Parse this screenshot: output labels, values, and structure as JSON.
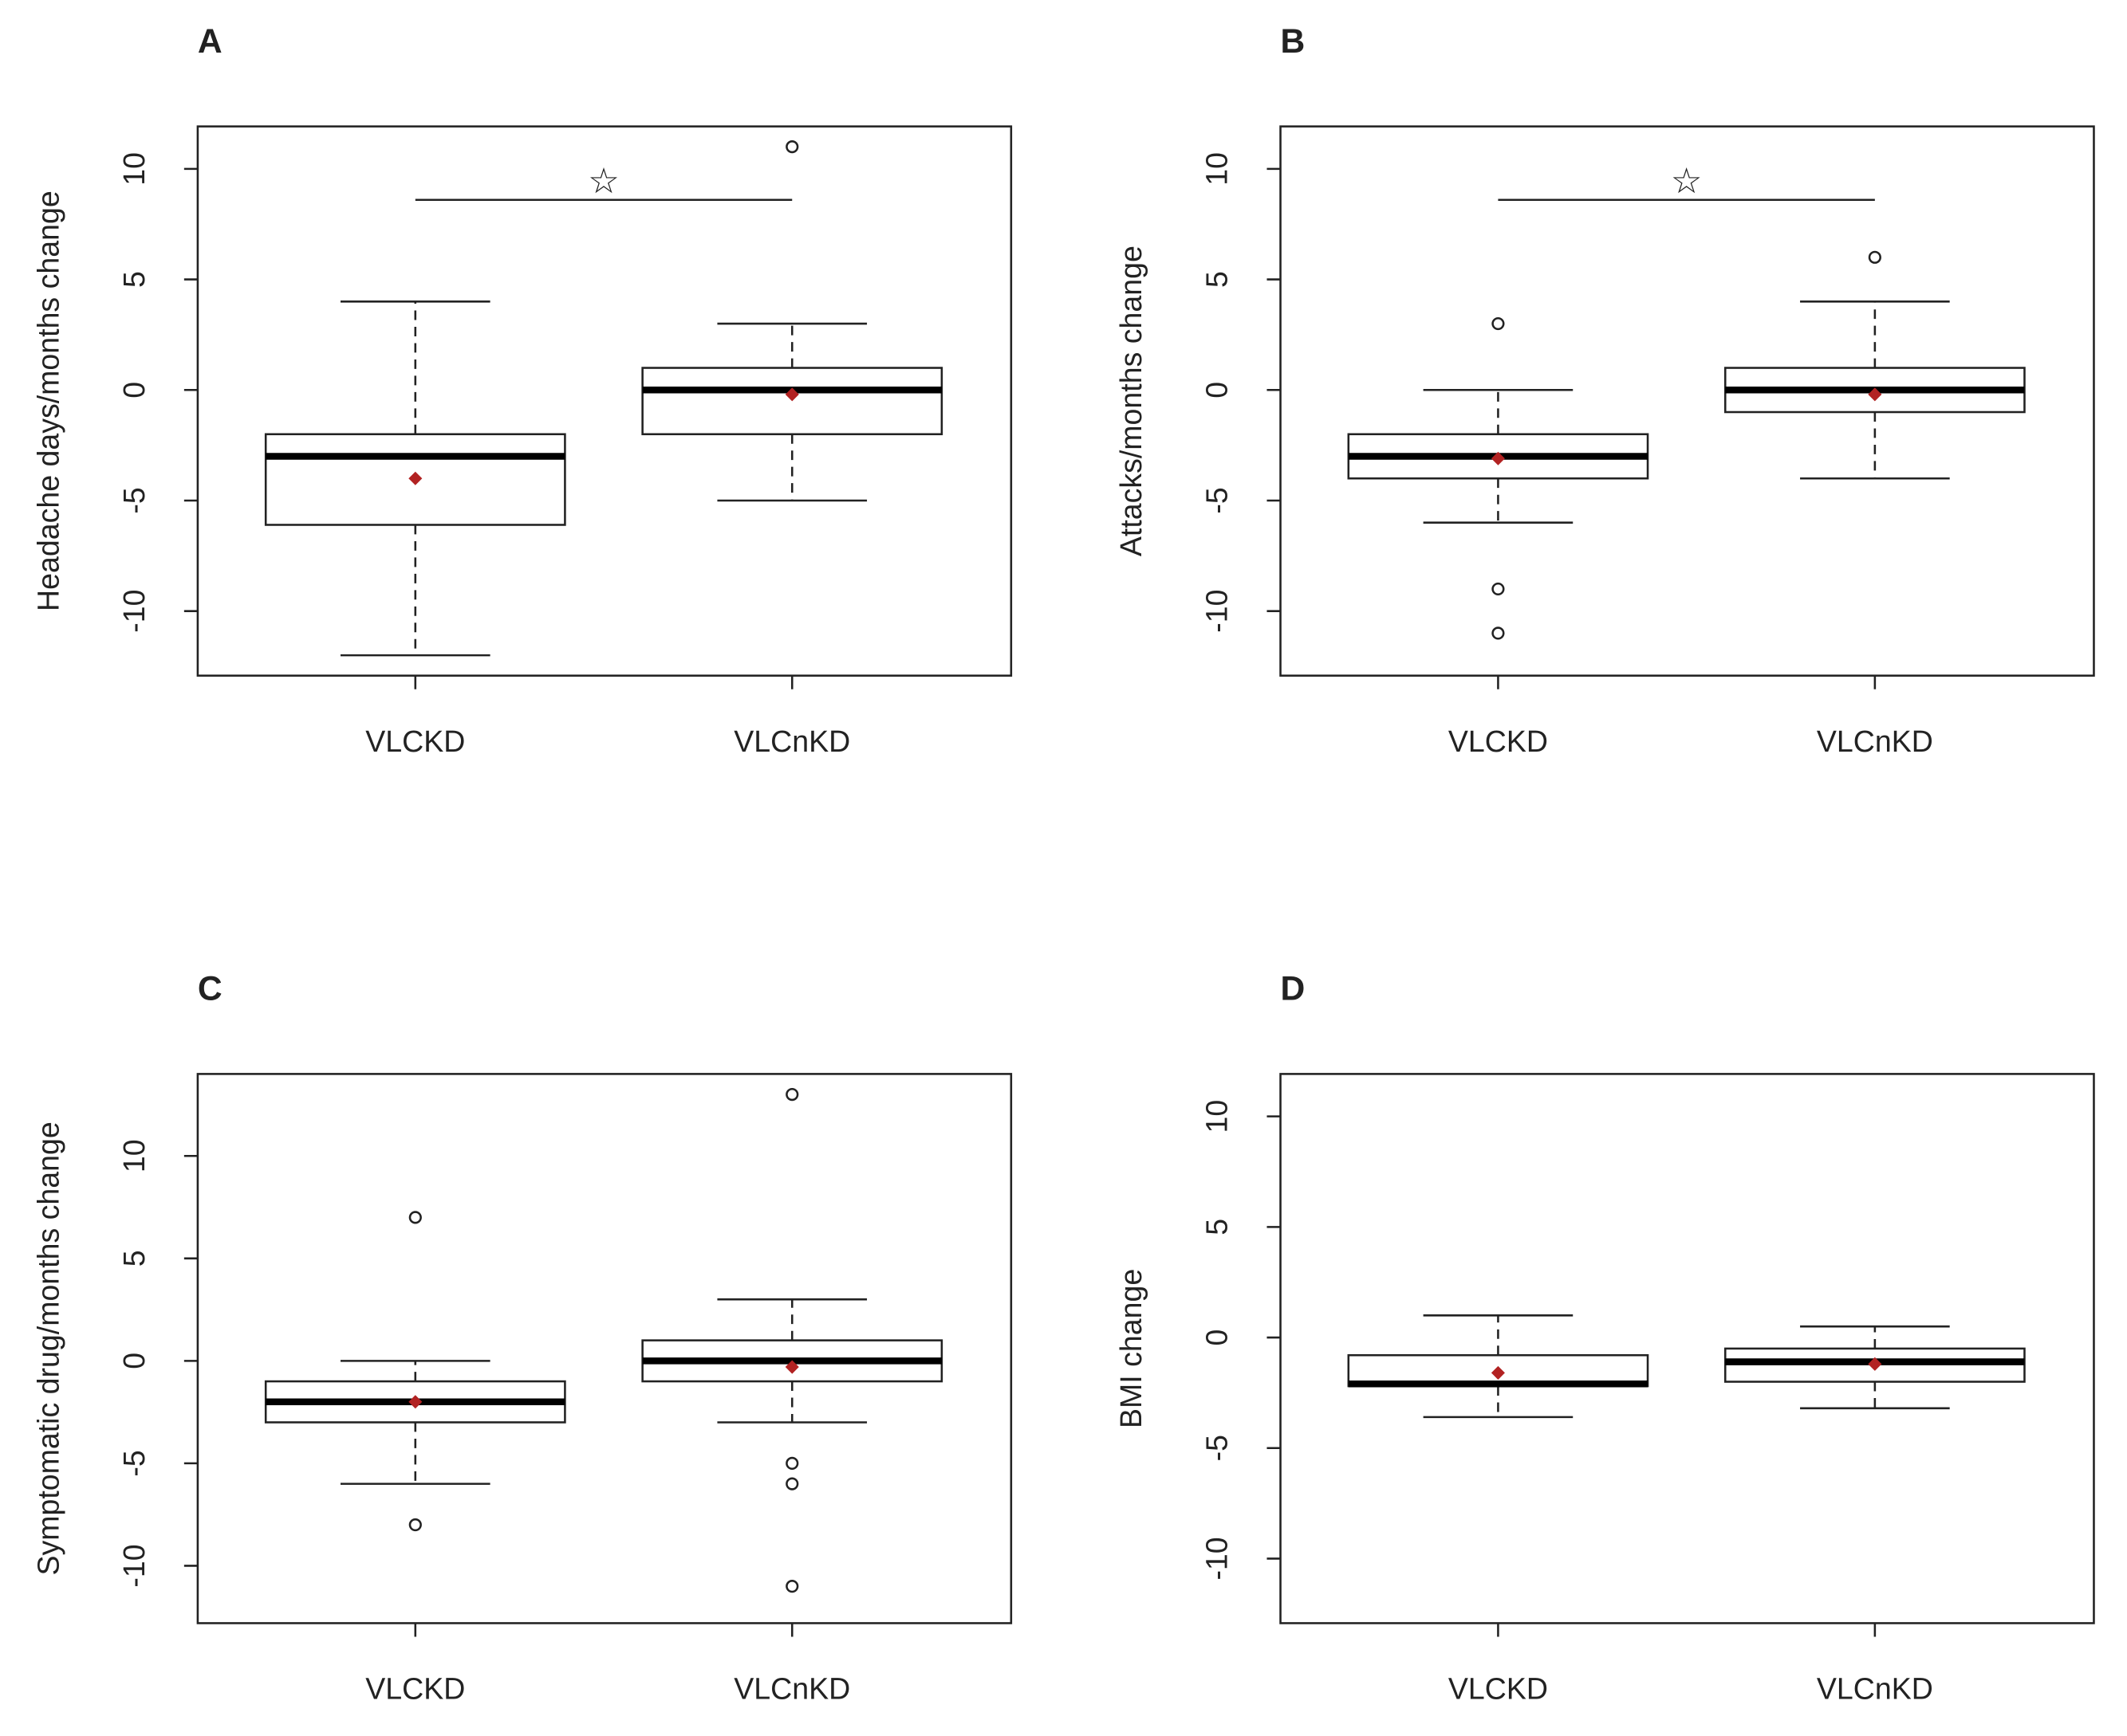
{
  "chart_data": [
    {
      "type": "box",
      "title": "A",
      "ylabel": "Headache days/months change",
      "categories": [
        "VLCKD",
        "VLCnKD"
      ],
      "boxes": [
        {
          "min": -12,
          "q1": -6.1,
          "median": -3,
          "q3": -2,
          "max": 4,
          "mean": -4,
          "outliers": []
        },
        {
          "min": -5,
          "q1": -2,
          "median": 0,
          "q3": 1,
          "max": 3,
          "mean": -0.2,
          "outliers": [
            11
          ]
        }
      ],
      "mean_color": "#b22222",
      "annotation": "☆",
      "ylim": [
        -12.92,
        11.92
      ],
      "yticks": [
        -10,
        -5,
        0,
        5,
        10
      ]
    },
    {
      "type": "box",
      "title": "B",
      "ylabel": "Attacks/months change",
      "categories": [
        "VLCKD",
        "VLCnKD"
      ],
      "boxes": [
        {
          "min": -6,
          "q1": -4,
          "median": -3,
          "q3": -2,
          "max": 0,
          "mean": -3.1,
          "outliers": [
            3,
            -9,
            -11
          ]
        },
        {
          "min": -4,
          "q1": -1,
          "median": 0,
          "q3": 1,
          "max": 4,
          "mean": -0.2,
          "outliers": [
            6
          ]
        }
      ],
      "mean_color": "#b22222",
      "annotation": "☆",
      "ylim": [
        -12.92,
        11.92
      ],
      "yticks": [
        -10,
        -5,
        0,
        5,
        10
      ]
    },
    {
      "type": "box",
      "title": "C",
      "ylabel": "Symptomatic drug/months change",
      "categories": [
        "VLCKD",
        "VLCnKD"
      ],
      "boxes": [
        {
          "min": -6,
          "q1": -3,
          "median": -2,
          "q3": -1,
          "max": 0,
          "mean": -2,
          "outliers": [
            7,
            -8
          ]
        },
        {
          "min": -3,
          "q1": -1,
          "median": 0,
          "q3": 1,
          "max": 3,
          "mean": -0.3,
          "outliers": [
            13,
            -5,
            -6,
            -11
          ]
        }
      ],
      "mean_color": "#b22222",
      "ylim": [
        -12.8,
        14
      ],
      "yticks": [
        -10,
        -5,
        0,
        5,
        10
      ]
    },
    {
      "type": "box",
      "title": "D",
      "ylabel": "BMI change",
      "categories": [
        "VLCKD",
        "VLCnKD"
      ],
      "boxes": [
        {
          "min": -3.6,
          "q1": -2.2,
          "median": -2.1,
          "q3": -0.8,
          "max": 1,
          "mean": -1.6,
          "outliers": []
        },
        {
          "min": -3.2,
          "q1": -2,
          "median": -1.1,
          "q3": -0.5,
          "max": 0.5,
          "mean": -1.2,
          "outliers": []
        }
      ],
      "mean_color": "#b22222",
      "ylim": [
        -12.92,
        11.92
      ],
      "yticks": [
        -10,
        -5,
        0,
        5,
        10
      ]
    }
  ]
}
